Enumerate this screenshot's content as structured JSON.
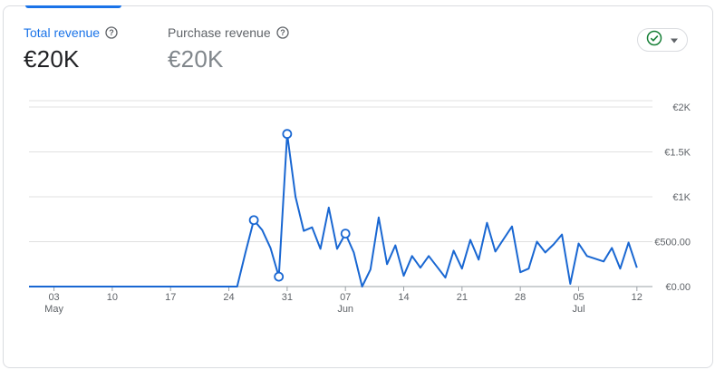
{
  "metrics": [
    {
      "label": "Total revenue",
      "value": "€20K",
      "active": true
    },
    {
      "label": "Purchase revenue",
      "value": "€20K",
      "active": false
    }
  ],
  "icons": {
    "help": "help-circle-icon",
    "compare": "check-circle-icon",
    "dropdown": "caret-down-icon"
  },
  "colors": {
    "accent": "#1a73e8",
    "line": "#1967d2",
    "check": "#188038"
  },
  "chart_data": {
    "type": "line",
    "x_start": "2024-04-30",
    "x_end": "2024-07-13",
    "x_tick_labels": [
      {
        "day": "03",
        "month": "May"
      },
      {
        "day": "10",
        "month": ""
      },
      {
        "day": "17",
        "month": ""
      },
      {
        "day": "24",
        "month": ""
      },
      {
        "day": "31",
        "month": ""
      },
      {
        "day": "07",
        "month": "Jun"
      },
      {
        "day": "14",
        "month": ""
      },
      {
        "day": "21",
        "month": ""
      },
      {
        "day": "28",
        "month": ""
      },
      {
        "day": "05",
        "month": "Jul"
      },
      {
        "day": "12",
        "month": ""
      }
    ],
    "y_tick_labels": [
      "€0.00",
      "€500.00",
      "€1K",
      "€1.5K",
      "€2K"
    ],
    "ylim": [
      0,
      2000
    ],
    "gridlines": true,
    "series": [
      {
        "values": [
          [
            "2024-04-30",
            0
          ],
          [
            "2024-05-01",
            0
          ],
          [
            "2024-05-02",
            0
          ],
          [
            "2024-05-03",
            0
          ],
          [
            "2024-05-04",
            0
          ],
          [
            "2024-05-05",
            0
          ],
          [
            "2024-05-06",
            0
          ],
          [
            "2024-05-07",
            0
          ],
          [
            "2024-05-08",
            0
          ],
          [
            "2024-05-09",
            0
          ],
          [
            "2024-05-10",
            0
          ],
          [
            "2024-05-11",
            0
          ],
          [
            "2024-05-12",
            0
          ],
          [
            "2024-05-13",
            0
          ],
          [
            "2024-05-14",
            0
          ],
          [
            "2024-05-15",
            0
          ],
          [
            "2024-05-16",
            0
          ],
          [
            "2024-05-17",
            0
          ],
          [
            "2024-05-18",
            0
          ],
          [
            "2024-05-19",
            0
          ],
          [
            "2024-05-20",
            0
          ],
          [
            "2024-05-21",
            0
          ],
          [
            "2024-05-22",
            0
          ],
          [
            "2024-05-23",
            0
          ],
          [
            "2024-05-24",
            0
          ],
          [
            "2024-05-25",
            0
          ],
          [
            "2024-05-26",
            380
          ],
          [
            "2024-05-27",
            740
          ],
          [
            "2024-05-28",
            630
          ],
          [
            "2024-05-29",
            430
          ],
          [
            "2024-05-30",
            110
          ],
          [
            "2024-05-31",
            1700
          ],
          [
            "2024-06-01",
            1000
          ],
          [
            "2024-06-02",
            620
          ],
          [
            "2024-06-03",
            660
          ],
          [
            "2024-06-04",
            420
          ],
          [
            "2024-06-05",
            880
          ],
          [
            "2024-06-06",
            420
          ],
          [
            "2024-06-07",
            590
          ],
          [
            "2024-06-08",
            380
          ],
          [
            "2024-06-09",
            0
          ],
          [
            "2024-06-10",
            190
          ],
          [
            "2024-06-11",
            770
          ],
          [
            "2024-06-12",
            250
          ],
          [
            "2024-06-13",
            460
          ],
          [
            "2024-06-14",
            120
          ],
          [
            "2024-06-15",
            340
          ],
          [
            "2024-06-16",
            210
          ],
          [
            "2024-06-17",
            340
          ],
          [
            "2024-06-18",
            220
          ],
          [
            "2024-06-19",
            100
          ],
          [
            "2024-06-20",
            400
          ],
          [
            "2024-06-21",
            200
          ],
          [
            "2024-06-22",
            520
          ],
          [
            "2024-06-23",
            300
          ],
          [
            "2024-06-24",
            710
          ],
          [
            "2024-06-25",
            390
          ],
          [
            "2024-06-26",
            530
          ],
          [
            "2024-06-27",
            670
          ],
          [
            "2024-06-28",
            160
          ],
          [
            "2024-06-29",
            200
          ],
          [
            "2024-06-30",
            500
          ],
          [
            "2024-07-01",
            380
          ],
          [
            "2024-07-02",
            470
          ],
          [
            "2024-07-03",
            580
          ],
          [
            "2024-07-04",
            30
          ],
          [
            "2024-07-05",
            480
          ],
          [
            "2024-07-06",
            340
          ],
          [
            "2024-07-07",
            310
          ],
          [
            "2024-07-08",
            280
          ],
          [
            "2024-07-09",
            430
          ],
          [
            "2024-07-10",
            200
          ],
          [
            "2024-07-11",
            490
          ],
          [
            "2024-07-12",
            210
          ]
        ],
        "highlighted": [
          "2024-05-27",
          "2024-05-30",
          "2024-05-31",
          "2024-06-07"
        ]
      }
    ]
  }
}
